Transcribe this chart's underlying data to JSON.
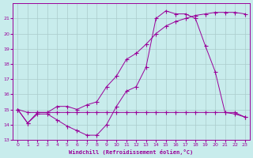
{
  "xlabel": "Windchill (Refroidissement éolien,°C)",
  "xlim": [
    -0.5,
    23.5
  ],
  "ylim": [
    13,
    22
  ],
  "yticks": [
    13,
    14,
    15,
    16,
    17,
    18,
    19,
    20,
    21
  ],
  "xticks": [
    0,
    1,
    2,
    3,
    4,
    5,
    6,
    7,
    8,
    9,
    10,
    11,
    12,
    13,
    14,
    15,
    16,
    17,
    18,
    19,
    20,
    21,
    22,
    23
  ],
  "bg_color": "#c8ecec",
  "grid_color": "#aacccc",
  "line_color": "#990099",
  "line1_x": [
    0,
    1,
    2,
    3,
    4,
    5,
    6,
    7,
    8,
    9,
    10,
    11,
    12,
    13,
    14,
    15,
    16,
    17,
    18,
    19,
    20,
    21,
    22,
    23
  ],
  "line1_y": [
    15.0,
    14.1,
    14.7,
    14.7,
    14.3,
    13.9,
    13.6,
    13.3,
    13.3,
    14.0,
    15.2,
    16.2,
    16.5,
    17.8,
    21.0,
    21.5,
    21.3,
    21.3,
    21.0,
    19.2,
    17.5,
    14.8,
    14.7,
    14.5
  ],
  "line2_x": [
    0,
    1,
    2,
    3,
    4,
    5,
    6,
    7,
    8,
    9,
    10,
    11,
    12,
    13,
    14,
    15,
    16,
    17,
    18,
    19,
    20,
    21,
    22,
    23
  ],
  "line2_y": [
    15.0,
    14.1,
    14.8,
    14.8,
    15.2,
    15.2,
    15.0,
    15.3,
    15.5,
    16.5,
    17.2,
    18.3,
    18.7,
    19.3,
    20.0,
    20.5,
    20.8,
    21.0,
    21.2,
    21.3,
    21.4,
    21.4,
    21.4,
    21.3
  ],
  "line3_x": [
    0,
    1,
    2,
    3,
    4,
    5,
    6,
    7,
    8,
    9,
    10,
    11,
    12,
    13,
    14,
    15,
    16,
    17,
    18,
    19,
    20,
    21,
    22,
    23
  ],
  "line3_y": [
    15.0,
    14.8,
    14.8,
    14.8,
    14.8,
    14.8,
    14.8,
    14.8,
    14.8,
    14.8,
    14.8,
    14.8,
    14.8,
    14.8,
    14.8,
    14.8,
    14.8,
    14.8,
    14.8,
    14.8,
    14.8,
    14.8,
    14.8,
    14.5
  ]
}
